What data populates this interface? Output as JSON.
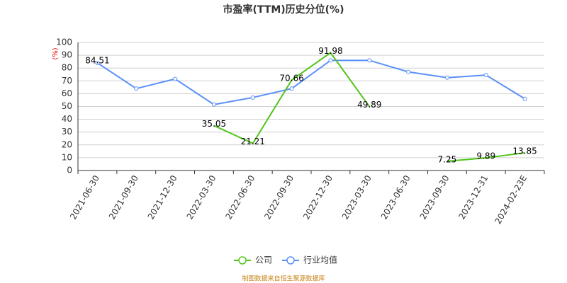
{
  "chart_data": {
    "type": "line",
    "title": "市盈率(TTM)历史分位(%)",
    "y_label": "(%)",
    "categories": [
      "2021-06-30",
      "2021-09-30",
      "2021-12-30",
      "2022-03-30",
      "2022-06-30",
      "2022-09-30",
      "2022-12-30",
      "2023-03-30",
      "2023-06-30",
      "2023-09-30",
      "2023-12-31",
      "2024-02-23E"
    ],
    "series": [
      {
        "name": "公司",
        "color": "#52c41a",
        "values": [
          84.51,
          null,
          null,
          35.05,
          21.21,
          70.66,
          91.98,
          49.89,
          null,
          7.25,
          9.89,
          13.85
        ],
        "show_labels": true
      },
      {
        "name": "行业均值",
        "color": "#5b8ff9",
        "values": [
          84,
          64,
          71.5,
          51.5,
          57,
          64,
          86,
          86,
          77,
          72.5,
          74.5,
          56
        ],
        "show_labels": false
      }
    ],
    "ylim": [
      0,
      100
    ],
    "yticks": [
      0,
      10,
      20,
      30,
      40,
      50,
      60,
      70,
      80,
      90,
      100
    ],
    "grid": true,
    "source": "制图数据来自恒生聚源数据库"
  }
}
